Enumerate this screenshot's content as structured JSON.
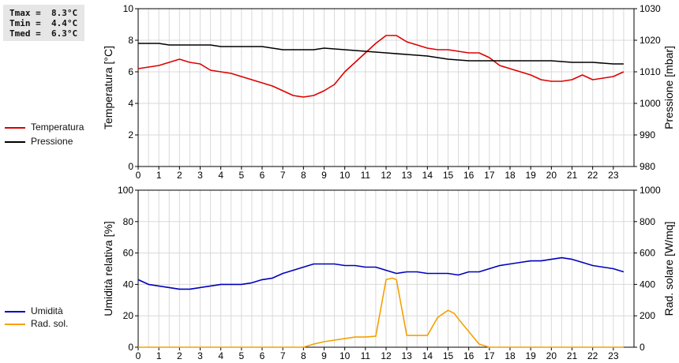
{
  "stats": {
    "tmax": "Tmax =  8.3°C",
    "tmin": "Tmin =  4.4°C",
    "tmed": "Tmed =  6.3°C"
  },
  "legend_top": [
    {
      "label": "Temperatura",
      "color": "#dd0000"
    },
    {
      "label": "Pressione",
      "color": "#000000"
    }
  ],
  "legend_bottom": [
    {
      "label": "Umidità",
      "color": "#0000bb"
    },
    {
      "label": "Rad. sol.",
      "color": "#f5a000"
    }
  ],
  "chart_data": [
    {
      "type": "line",
      "xlim": [
        0,
        24
      ],
      "x_ticks": [
        "0",
        "1",
        "2",
        "3",
        "4",
        "5",
        "6",
        "7",
        "8",
        "9",
        "10",
        "11",
        "12",
        "13",
        "14",
        "15",
        "16",
        "17",
        "18",
        "19",
        "20",
        "21",
        "22",
        "23"
      ],
      "ylabel": "Temperatura [°C]",
      "ylim": [
        0,
        10
      ],
      "y_ticks": [
        "0",
        "2",
        "4",
        "6",
        "8",
        "10"
      ],
      "y2label": "Pressione [mbar]",
      "y2lim": [
        980,
        1030
      ],
      "y2_ticks": [
        "980",
        "990",
        "1000",
        "1010",
        "1020",
        "1030"
      ],
      "grid": true,
      "series": [
        {
          "name": "Temperatura",
          "axis": "left",
          "color": "#dd0000",
          "x": [
            0,
            0.5,
            1,
            1.5,
            2,
            2.5,
            3,
            3.5,
            4,
            4.5,
            5,
            5.5,
            6,
            6.5,
            7,
            7.5,
            8,
            8.5,
            9,
            9.5,
            10,
            10.5,
            11,
            11.5,
            12,
            12.5,
            13,
            13.5,
            14,
            14.5,
            15,
            15.5,
            16,
            16.5,
            17,
            17.5,
            18,
            18.5,
            19,
            19.5,
            20,
            20.5,
            21,
            21.5,
            22,
            22.5,
            23,
            23.5
          ],
          "y": [
            6.2,
            6.3,
            6.4,
            6.6,
            6.8,
            6.6,
            6.5,
            6.1,
            6.0,
            5.9,
            5.7,
            5.5,
            5.3,
            5.1,
            4.8,
            4.5,
            4.4,
            4.5,
            4.8,
            5.2,
            6.0,
            6.6,
            7.2,
            7.8,
            8.3,
            8.3,
            7.9,
            7.7,
            7.5,
            7.4,
            7.4,
            7.3,
            7.2,
            7.2,
            6.9,
            6.4,
            6.2,
            6.0,
            5.8,
            5.5,
            5.4,
            5.4,
            5.5,
            5.8,
            5.5,
            5.6,
            5.7,
            6.0
          ]
        },
        {
          "name": "Pressione",
          "axis": "right",
          "color": "#000000",
          "x": [
            0,
            1,
            1.5,
            3.5,
            4,
            6,
            6.5,
            7,
            8.5,
            9,
            10,
            11,
            12,
            13,
            14,
            14.5,
            15,
            16,
            17,
            20,
            21,
            22,
            23,
            23.5
          ],
          "y": [
            1019,
            1019,
            1018.5,
            1018.5,
            1018,
            1018,
            1017.5,
            1017,
            1017,
            1017.5,
            1017,
            1016.5,
            1016,
            1015.5,
            1015,
            1014.5,
            1014,
            1013.5,
            1013.5,
            1013.5,
            1013,
            1013,
            1012.5,
            1012.5
          ]
        }
      ]
    },
    {
      "type": "line",
      "xlim": [
        0,
        24
      ],
      "x_ticks": [
        "0",
        "1",
        "2",
        "3",
        "4",
        "5",
        "6",
        "7",
        "8",
        "9",
        "10",
        "11",
        "12",
        "13",
        "14",
        "15",
        "16",
        "17",
        "18",
        "19",
        "20",
        "21",
        "22",
        "23"
      ],
      "ylabel": "Umidità relativa [%]",
      "ylim": [
        0,
        100
      ],
      "y_ticks": [
        "0",
        "20",
        "40",
        "60",
        "80",
        "100"
      ],
      "y2label": "Rad. solare [W/mq]",
      "y2lim": [
        0,
        1000
      ],
      "y2_ticks": [
        "0",
        "200",
        "400",
        "600",
        "800",
        "1000"
      ],
      "grid": true,
      "series": [
        {
          "name": "Umidità",
          "axis": "left",
          "color": "#0000bb",
          "x": [
            0,
            0.5,
            1,
            1.5,
            2,
            2.5,
            3,
            3.5,
            4,
            4.5,
            5,
            5.5,
            6,
            6.5,
            7,
            7.5,
            8,
            8.5,
            9,
            9.5,
            10,
            10.5,
            11,
            11.5,
            12,
            12.5,
            13,
            13.5,
            14,
            14.5,
            15,
            15.5,
            16,
            16.5,
            17,
            17.5,
            18,
            18.5,
            19,
            19.5,
            20,
            20.5,
            21,
            21.5,
            22,
            22.5,
            23,
            23.5
          ],
          "y": [
            43,
            40,
            39,
            38,
            37,
            37,
            38,
            39,
            40,
            40,
            40,
            41,
            43,
            44,
            47,
            49,
            51,
            53,
            53,
            53,
            52,
            52,
            51,
            51,
            49,
            47,
            48,
            48,
            47,
            47,
            47,
            46,
            48,
            48,
            50,
            52,
            53,
            54,
            55,
            55,
            56,
            57,
            56,
            54,
            52,
            51,
            50,
            48
          ]
        },
        {
          "name": "Rad. sol.",
          "axis": "right",
          "color": "#f5a000",
          "x": [
            0,
            1,
            2,
            3,
            4,
            5,
            6,
            7,
            8,
            8.5,
            9,
            9.5,
            10,
            10.5,
            11,
            11.5,
            12,
            12.3,
            12.5,
            13,
            13.5,
            14,
            14.5,
            15,
            15.3,
            15.5,
            16,
            16.5,
            17,
            18,
            19,
            20,
            21,
            22,
            23,
            23.5
          ],
          "y": [
            0,
            0,
            0,
            0,
            0,
            0,
            0,
            0,
            0,
            20,
            35,
            45,
            55,
            65,
            65,
            70,
            430,
            440,
            430,
            75,
            75,
            75,
            190,
            235,
            215,
            180,
            100,
            20,
            0,
            0,
            0,
            0,
            0,
            0,
            0,
            0
          ]
        }
      ]
    }
  ]
}
